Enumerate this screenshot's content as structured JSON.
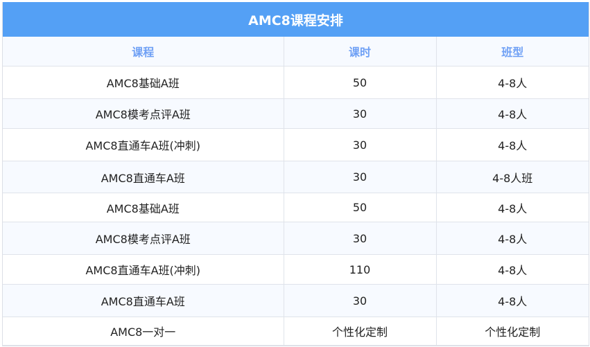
{
  "title": "AMC8课程安排",
  "headers": [
    "课程",
    "课时",
    "班型"
  ],
  "rows": [
    [
      "AMC8基础A班",
      "50",
      "4-8人"
    ],
    [
      "AMC8模考点评A班",
      "30",
      "4-8人"
    ],
    [
      "AMC8直通车A班(冲刺)",
      "30",
      "4-8人"
    ],
    [
      "AMC8直通车A班",
      "30",
      "4-8人班"
    ],
    [
      "AMC8基础A班",
      "50",
      "4-8人"
    ],
    [
      "AMC8模考点评A班",
      "30",
      "4-8人"
    ],
    [
      "AMC8直通车A班(冲刺)",
      "110",
      "4-8人"
    ],
    [
      "AMC8直通车A班",
      "30",
      "4-8人"
    ],
    [
      "AMC8一对一",
      "个性化定制",
      "个性化定制"
    ]
  ],
  "colors": {
    "header_bg": "#54a0f5",
    "column_header_text": "#6fa0f5",
    "alt_row": "#f7faff"
  }
}
